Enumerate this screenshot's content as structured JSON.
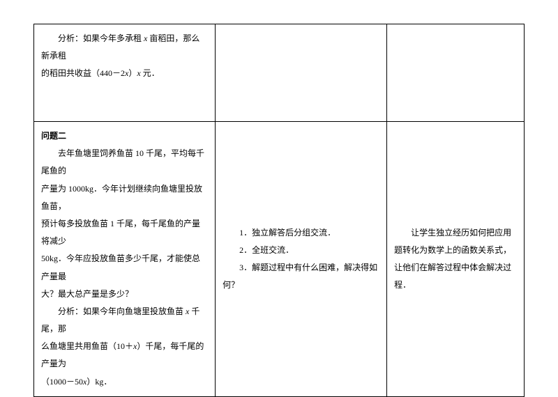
{
  "table": {
    "row1": {
      "col1_lines": [
        "分析：如果今年多承租 <i>x</i> 亩稻田，那么新承租",
        "的稻田共收益（440－2<i>x</i>）<i>x</i> 元．"
      ],
      "col2": "",
      "col3": ""
    },
    "row2": {
      "col1_title": "问题二",
      "col1_body": [
        "去年鱼塘里饲养鱼苗 10 千尾，平均每千尾鱼的",
        "产量为 1000kg．今年计划继续向鱼塘里投放鱼苗，",
        "预计每多投放鱼苗 1 千尾，每千尾鱼的产量将减少",
        "50kg．今年应投放鱼苗多少千尾，才能使总产量最",
        "大？最大总产量是多少？",
        "分析：如果今年向鱼塘里投放鱼苗 <i>x</i> 千尾，那",
        "么鱼塘里共用鱼苗（10＋<i>x</i>）千尾，每千尾的产量为",
        "（1000－50<i>x</i>）kg．"
      ],
      "col2_lines": [
        "1．独立解答后分组交流．",
        "2．全班交流．",
        "3．解题过程中有什么困难，解决得如何？"
      ],
      "col3_lines": [
        "让学生独立经历如何把应用",
        "题转化为数学上的函数关系式，",
        "让他们在解答过程中体会解决过",
        "程．"
      ]
    }
  }
}
